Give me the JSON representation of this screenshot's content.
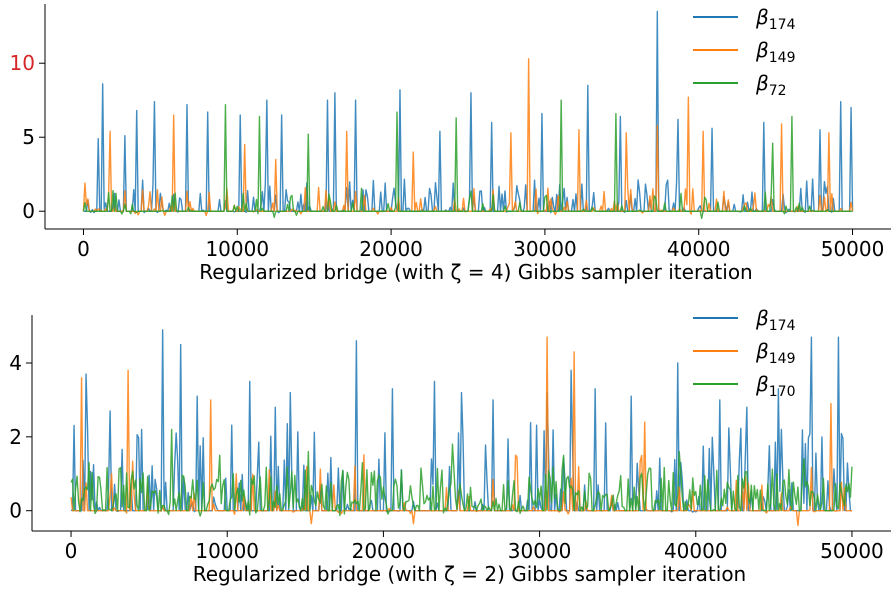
{
  "chart_data": [
    {
      "type": "line",
      "xlabel": "Regularized bridge (with ζ = 4) Gibbs sampler iteration",
      "x_range": [
        0,
        50000
      ],
      "xlim": [
        -2500,
        52500
      ],
      "ylim": [
        -1.2,
        14.0
      ],
      "xticks": [
        "0",
        "10000",
        "20000",
        "30000",
        "40000",
        "50000"
      ],
      "yticks": [
        "0",
        "5",
        "10"
      ],
      "ytick_colors": [
        "#000000",
        "#000000",
        "#d62728"
      ],
      "grid": false,
      "legend_position": "top-right",
      "series": [
        {
          "name": "β174",
          "symbol": "β",
          "sub": "174",
          "color": "#1f77b4",
          "spikes": [
            [
              1000,
              4.9
            ],
            [
              1250,
              8.6
            ],
            [
              2700,
              5.1
            ],
            [
              3500,
              6.8
            ],
            [
              4600,
              7.4
            ],
            [
              6700,
              7.2
            ],
            [
              8100,
              6.7
            ],
            [
              10200,
              6.5
            ],
            [
              11900,
              7.5
            ],
            [
              12900,
              6.5
            ],
            [
              15900,
              7.5
            ],
            [
              16300,
              8.0
            ],
            [
              17700,
              7.5
            ],
            [
              20600,
              8.2
            ],
            [
              23200,
              5.4
            ],
            [
              25200,
              8.0
            ],
            [
              26500,
              6.0
            ],
            [
              29800,
              6.6
            ],
            [
              32800,
              8.5
            ],
            [
              34900,
              6.4
            ],
            [
              37300,
              13.5
            ],
            [
              38700,
              6.2
            ],
            [
              40900,
              5.6
            ],
            [
              44200,
              6.0
            ],
            [
              47900,
              5.5
            ],
            [
              49200,
              7.4
            ],
            [
              49900,
              7.0
            ]
          ],
          "density": 0.3,
          "noise_amp": 2.2,
          "neg_amp": 0.1
        },
        {
          "name": "β149",
          "symbol": "β",
          "sub": "149",
          "color": "#ff7f0e",
          "spikes": [
            [
              100,
              1.9
            ],
            [
              1700,
              5.4
            ],
            [
              5900,
              6.5
            ],
            [
              10500,
              4.5
            ],
            [
              12500,
              3.5
            ],
            [
              17100,
              5.4
            ],
            [
              21400,
              4.0
            ],
            [
              27800,
              5.3
            ],
            [
              28900,
              10.3
            ],
            [
              32200,
              5.5
            ],
            [
              35300,
              5.3
            ],
            [
              37300,
              5.8
            ],
            [
              39300,
              7.7
            ],
            [
              40300,
              5.4
            ],
            [
              45400,
              5.9
            ],
            [
              48500,
              5.3
            ]
          ],
          "density": 0.2,
          "noise_amp": 1.6,
          "neg_amp": 0.3
        },
        {
          "name": "β72",
          "symbol": "β",
          "sub": "72",
          "color": "#2ca02c",
          "spikes": [
            [
              9200,
              7.2
            ],
            [
              11400,
              6.4
            ],
            [
              14600,
              5.2
            ],
            [
              20400,
              6.7
            ],
            [
              24200,
              6.3
            ],
            [
              31100,
              7.5
            ],
            [
              34600,
              6.6
            ],
            [
              44800,
              4.6
            ],
            [
              46100,
              6.4
            ]
          ],
          "density": 0.15,
          "noise_amp": 1.6,
          "neg_amp": 0.5
        }
      ]
    },
    {
      "type": "line",
      "xlabel": "Regularized bridge (with ζ = 2) Gibbs sampler iteration",
      "x_range": [
        0,
        50000
      ],
      "xlim": [
        -2500,
        52500
      ],
      "ylim": [
        -0.55,
        5.3
      ],
      "xticks": [
        "0",
        "10000",
        "20000",
        "30000",
        "40000",
        "50000"
      ],
      "yticks": [
        "0",
        "2",
        "4"
      ],
      "ytick_colors": [
        "#000000",
        "#000000",
        "#000000"
      ],
      "grid": false,
      "legend_position": "top-right",
      "series": [
        {
          "name": "β174",
          "symbol": "β",
          "sub": "174",
          "color": "#1f77b4",
          "spikes": [
            [
              1000,
              3.7
            ],
            [
              2500,
              2.7
            ],
            [
              4500,
              2.2
            ],
            [
              5900,
              4.9
            ],
            [
              7000,
              4.5
            ],
            [
              8100,
              3.1
            ],
            [
              11400,
              3.5
            ],
            [
              13100,
              2.8
            ],
            [
              14000,
              3.2
            ],
            [
              18300,
              4.6
            ],
            [
              20600,
              3.3
            ],
            [
              23300,
              3.5
            ],
            [
              25000,
              3.2
            ],
            [
              27000,
              3.0
            ],
            [
              30500,
              3.2
            ],
            [
              32000,
              3.8
            ],
            [
              33600,
              3.3
            ],
            [
              35900,
              3.1
            ],
            [
              38800,
              4.0
            ],
            [
              41500,
              3.0
            ],
            [
              43300,
              2.8
            ],
            [
              45300,
              3.3
            ],
            [
              47400,
              4.7
            ],
            [
              49100,
              4.7
            ]
          ],
          "density": 0.28,
          "noise_amp": 2.4,
          "neg_amp": 0.05
        },
        {
          "name": "β149",
          "symbol": "β",
          "sub": "149",
          "color": "#ff7f0e",
          "spikes": [
            [
              700,
              3.6
            ],
            [
              3700,
              3.8
            ],
            [
              8900,
              3.0
            ],
            [
              15400,
              -0.35
            ],
            [
              21900,
              -0.35
            ],
            [
              30500,
              4.7
            ],
            [
              32200,
              4.3
            ],
            [
              36700,
              2.4
            ],
            [
              46500,
              -0.4
            ],
            [
              48700,
              2.9
            ]
          ],
          "density": 0.12,
          "noise_amp": 1.6,
          "neg_amp": 0.1
        },
        {
          "name": "β170",
          "symbol": "β",
          "sub": "170",
          "color": "#2ca02c",
          "spikes": [
            [
              1200,
              1.3
            ],
            [
              6400,
              2.2
            ],
            [
              9500,
              1.5
            ],
            [
              15200,
              1.6
            ],
            [
              18700,
              1.3
            ],
            [
              24400,
              1.8
            ],
            [
              31500,
              1.5
            ],
            [
              38900,
              1.6
            ],
            [
              46900,
              1.4
            ]
          ],
          "density": 0.75,
          "noise_amp": 1.2,
          "neg_amp": 0.15
        }
      ]
    }
  ]
}
